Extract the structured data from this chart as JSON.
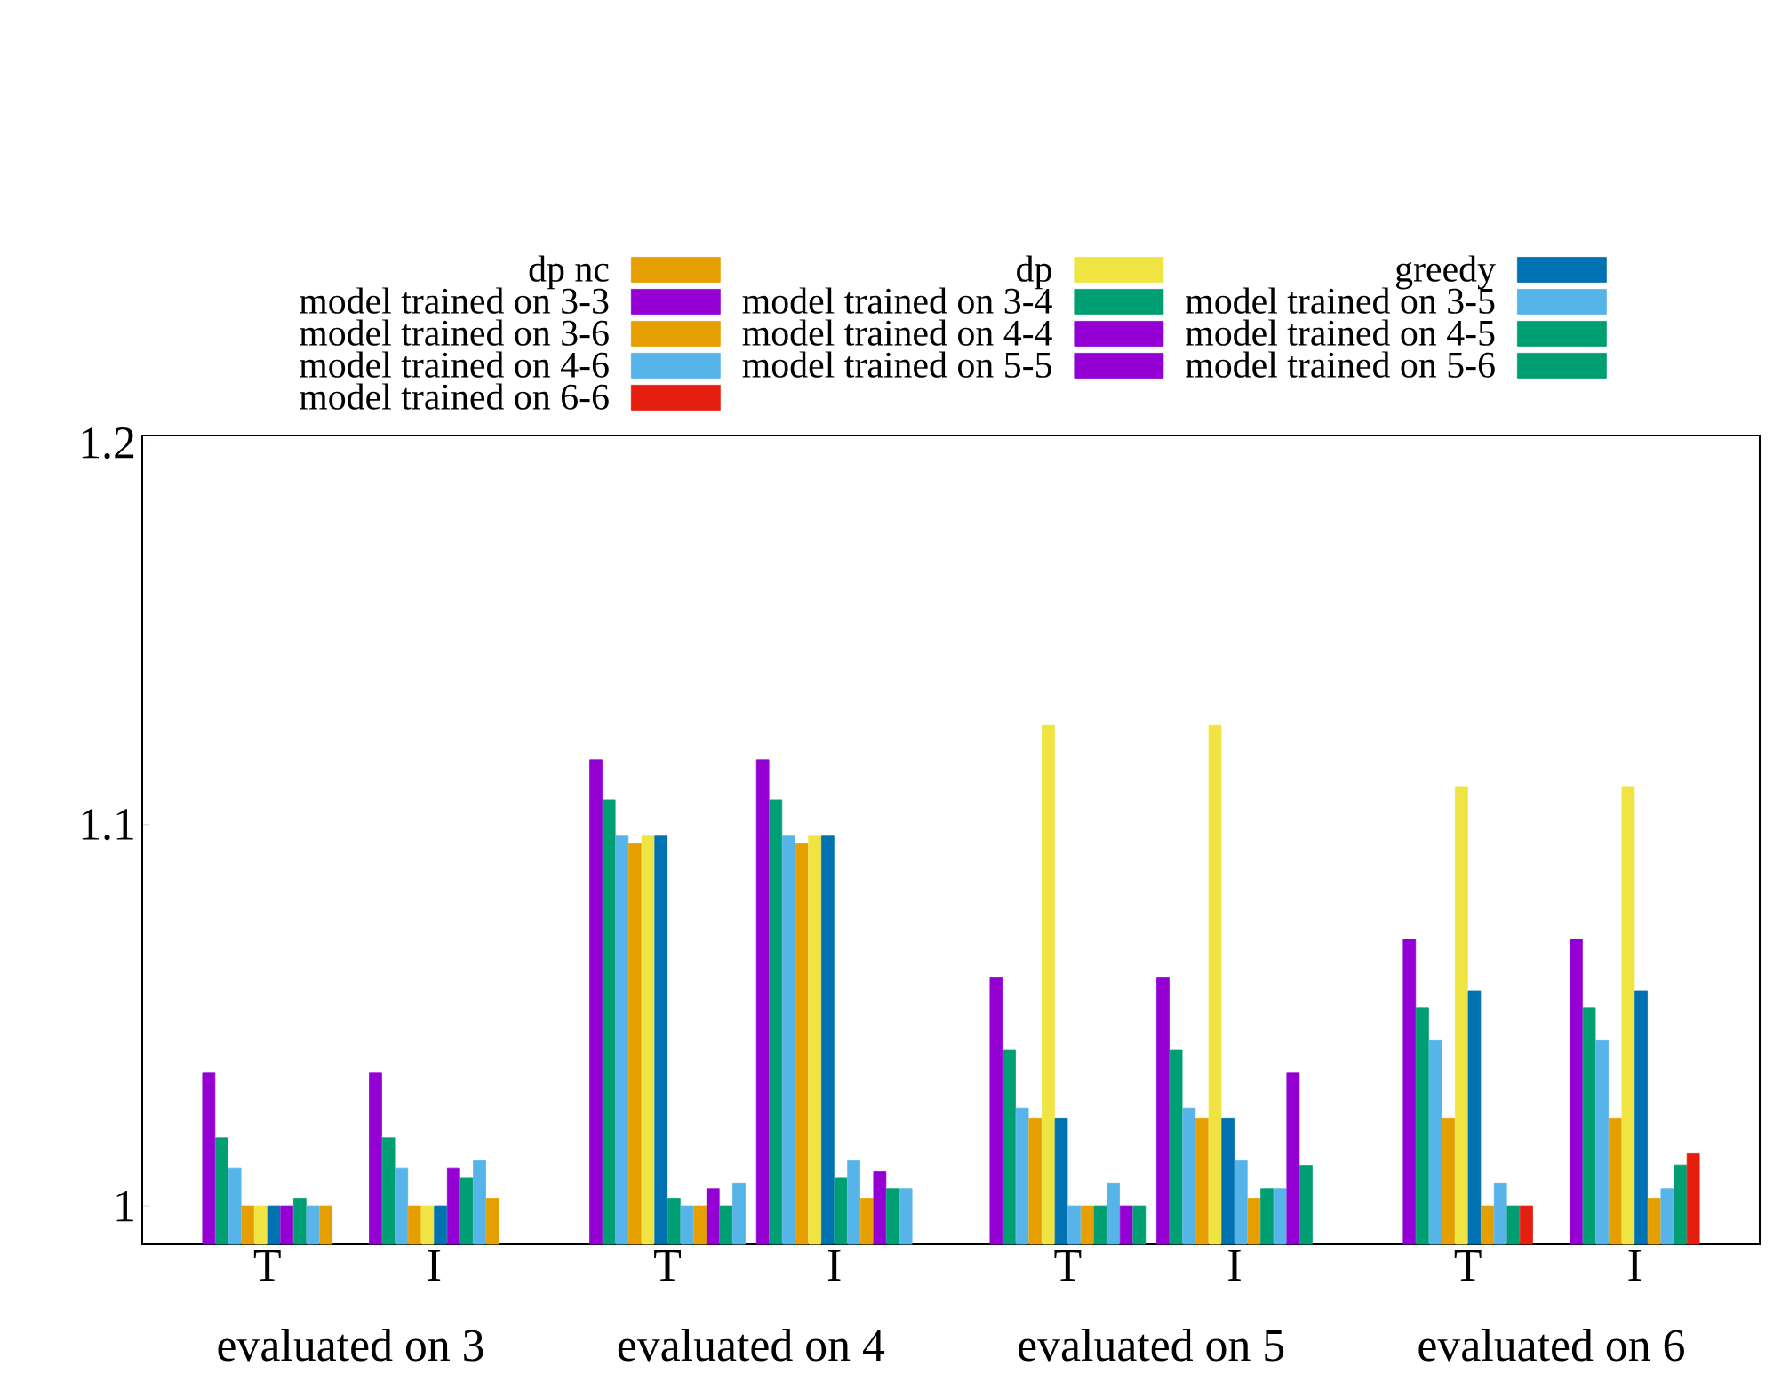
{
  "chart_data": {
    "type": "bar",
    "categories": [
      "T",
      "I",
      "T",
      "I",
      "T",
      "I",
      "T",
      "I"
    ],
    "annotations": [
      "evaluated on 3",
      "evaluated on 4",
      "evaluated on 5",
      "evaluated on 6"
    ],
    "ylim": [
      0.99,
      1.202
    ],
    "yticks": [
      1,
      1.1,
      1.2
    ],
    "legend": "top",
    "grid": false,
    "series": [
      {
        "color": "#9400d3",
        "values": [
          1.035,
          1.035,
          1.117,
          1.117,
          1.06,
          1.06,
          1.07,
          1.07
        ]
      },
      {
        "color": "#009e73",
        "values": [
          1.018,
          1.018,
          1.1065,
          1.1065,
          1.041,
          1.041,
          1.052,
          1.052
        ]
      },
      {
        "color": "#56b4e9",
        "values": [
          1.01,
          1.01,
          1.097,
          1.097,
          1.0256,
          1.0256,
          1.0435,
          1.0435
        ]
      },
      {
        "name": "dp nc",
        "color": "#e69f00",
        "values": [
          1.0,
          1.0,
          1.095,
          1.095,
          1.023,
          1.023,
          1.023,
          1.023
        ]
      },
      {
        "name": "dp",
        "color": "#f0e442",
        "values": [
          1.0,
          1.0,
          1.097,
          1.097,
          1.126,
          1.126,
          1.11,
          1.11
        ]
      },
      {
        "name": "greedy",
        "color": "#0072b2",
        "values": [
          1.0,
          1.0,
          1.097,
          1.097,
          1.023,
          1.023,
          1.0564,
          1.0564
        ]
      },
      {
        "name": "model trained on 3-3",
        "color": "#9400d3",
        "values": [
          1.0,
          1.01,
          null,
          null,
          null,
          null,
          null,
          null
        ]
      },
      {
        "name": "model trained on 3-4",
        "color": "#009e73",
        "values": [
          1.002,
          1.0075,
          1.002,
          1.0075,
          null,
          null,
          null,
          null
        ]
      },
      {
        "name": "model trained on 3-5",
        "color": "#56b4e9",
        "values": [
          1.0,
          1.012,
          1.0,
          1.012,
          1.0,
          1.012,
          null,
          null
        ]
      },
      {
        "name": "model trained on 3-6",
        "color": "#e69f00",
        "values": [
          1.0,
          1.002,
          1.0,
          1.002,
          1.0,
          1.002,
          1.0,
          1.002
        ]
      },
      {
        "name": "model trained on 4-4",
        "color": "#9400d3",
        "values": [
          null,
          null,
          1.0045,
          1.009,
          null,
          null,
          null,
          null
        ]
      },
      {
        "name": "model trained on 4-5",
        "color": "#009e73",
        "values": [
          null,
          null,
          1.0,
          1.0045,
          1.0,
          1.0045,
          null,
          null
        ]
      },
      {
        "name": "model trained on 4-6",
        "color": "#56b4e9",
        "values": [
          null,
          null,
          1.006,
          1.0045,
          1.006,
          1.0045,
          1.006,
          1.0045
        ]
      },
      {
        "name": "model trained on 5-5",
        "color": "#9400d3",
        "values": [
          null,
          null,
          null,
          null,
          1.0,
          1.035,
          null,
          null
        ]
      },
      {
        "name": "model trained on 5-6",
        "color": "#009e73",
        "values": [
          null,
          null,
          null,
          null,
          1.0,
          1.0106,
          1.0,
          1.0107
        ]
      },
      {
        "name": "model trained on 6-6",
        "color": "#e51e10",
        "values": [
          null,
          null,
          null,
          null,
          null,
          null,
          1.0,
          1.0139
        ]
      }
    ]
  }
}
